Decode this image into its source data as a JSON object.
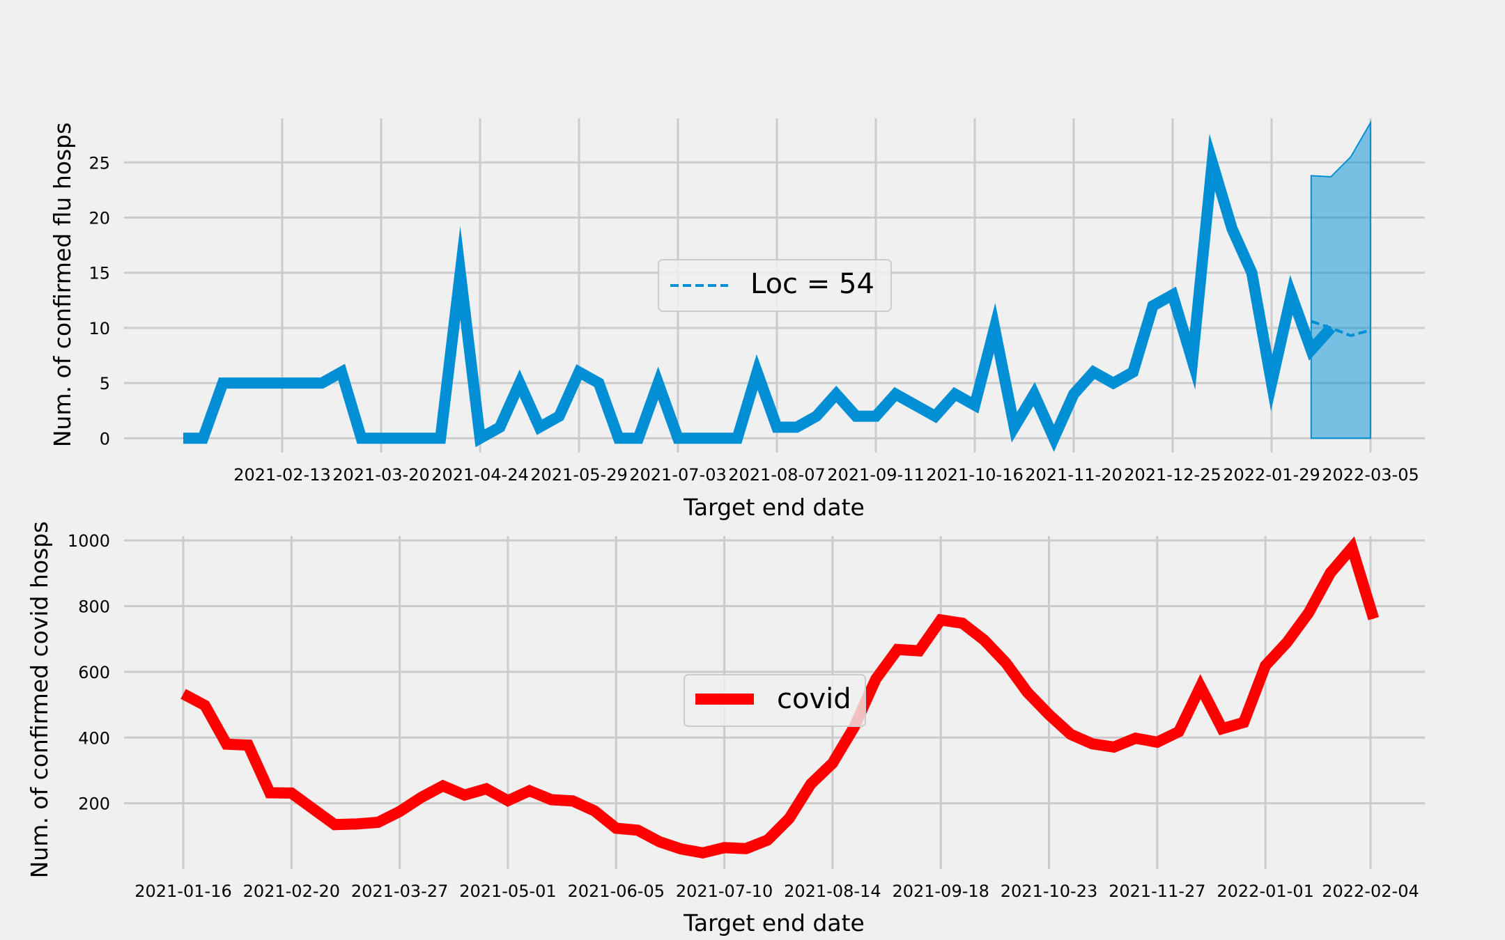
{
  "chart_data": [
    {
      "type": "line",
      "title": "",
      "xlabel": "Target end date",
      "ylabel": "Num. of confirmed flu hosps",
      "x_start": "2021-01-09",
      "x_step_days": 7,
      "xticks": [
        "2021-02-13",
        "2021-03-20",
        "2021-04-24",
        "2021-05-29",
        "2021-07-03",
        "2021-08-07",
        "2021-09-11",
        "2021-10-16",
        "2021-11-20",
        "2021-12-25",
        "2022-01-29",
        "2022-03-05"
      ],
      "yticks": [
        0,
        5,
        10,
        15,
        20,
        25
      ],
      "ylim": [
        -1.3,
        29.5
      ],
      "grid": true,
      "legend": {
        "placement": "center",
        "label": "Loc = 54"
      },
      "series": [
        {
          "kind": "observed",
          "color": "#008fd5",
          "values": [
            0,
            0,
            5,
            5,
            5,
            5,
            5,
            5,
            6,
            0,
            0,
            0,
            0,
            0,
            15,
            0,
            1,
            5,
            1,
            2,
            6,
            5,
            0,
            0,
            5,
            0,
            0,
            0,
            0,
            6,
            1,
            1,
            2,
            4,
            2,
            2,
            4,
            3,
            2,
            4,
            3,
            10,
            1,
            4,
            0,
            4,
            6,
            5,
            6,
            12,
            13,
            7,
            25,
            19,
            15,
            5,
            13,
            8,
            10
          ]
        },
        {
          "kind": "forecast",
          "name": "Loc = 54",
          "style": "dashed",
          "color": "#008fd5",
          "x_start": "2022-02-12",
          "median": [
            10.6,
            10.0,
            9.3,
            9.8
          ],
          "lower": [
            0,
            0,
            0,
            0
          ],
          "upper": [
            23.8,
            23.7,
            25.5,
            28.6
          ]
        }
      ]
    },
    {
      "type": "line",
      "title": "",
      "xlabel": "Target end date",
      "ylabel": "Num. of confirmed covid hosps",
      "x_start": "2021-01-16",
      "x_step_days": 7,
      "xticks": [
        "2021-01-16",
        "2021-02-20",
        "2021-03-27",
        "2021-05-01",
        "2021-06-05",
        "2021-07-10",
        "2021-08-14",
        "2021-09-18",
        "2021-10-23",
        "2021-11-27",
        "2022-01-01",
        "2022-02-04"
      ],
      "yticks": [
        200,
        400,
        600,
        800,
        1000
      ],
      "ylim": [
        0,
        1030
      ],
      "grid": true,
      "legend": {
        "placement": "center",
        "label": "covid"
      },
      "series": [
        {
          "name": "covid",
          "color": "#ff0000",
          "values": [
            533,
            498,
            380,
            377,
            232,
            231,
            183,
            135,
            137,
            142,
            175,
            218,
            253,
            225,
            244,
            208,
            238,
            211,
            207,
            177,
            124,
            118,
            83,
            61,
            49,
            65,
            62,
            88,
            154,
            259,
            322,
            432,
            578,
            668,
            664,
            758,
            748,
            697,
            628,
            538,
            470,
            410,
            381,
            371,
            398,
            386,
            418,
            555,
            427,
            446,
            619,
            690,
            780,
            901,
            978,
            762
          ]
        }
      ]
    }
  ]
}
